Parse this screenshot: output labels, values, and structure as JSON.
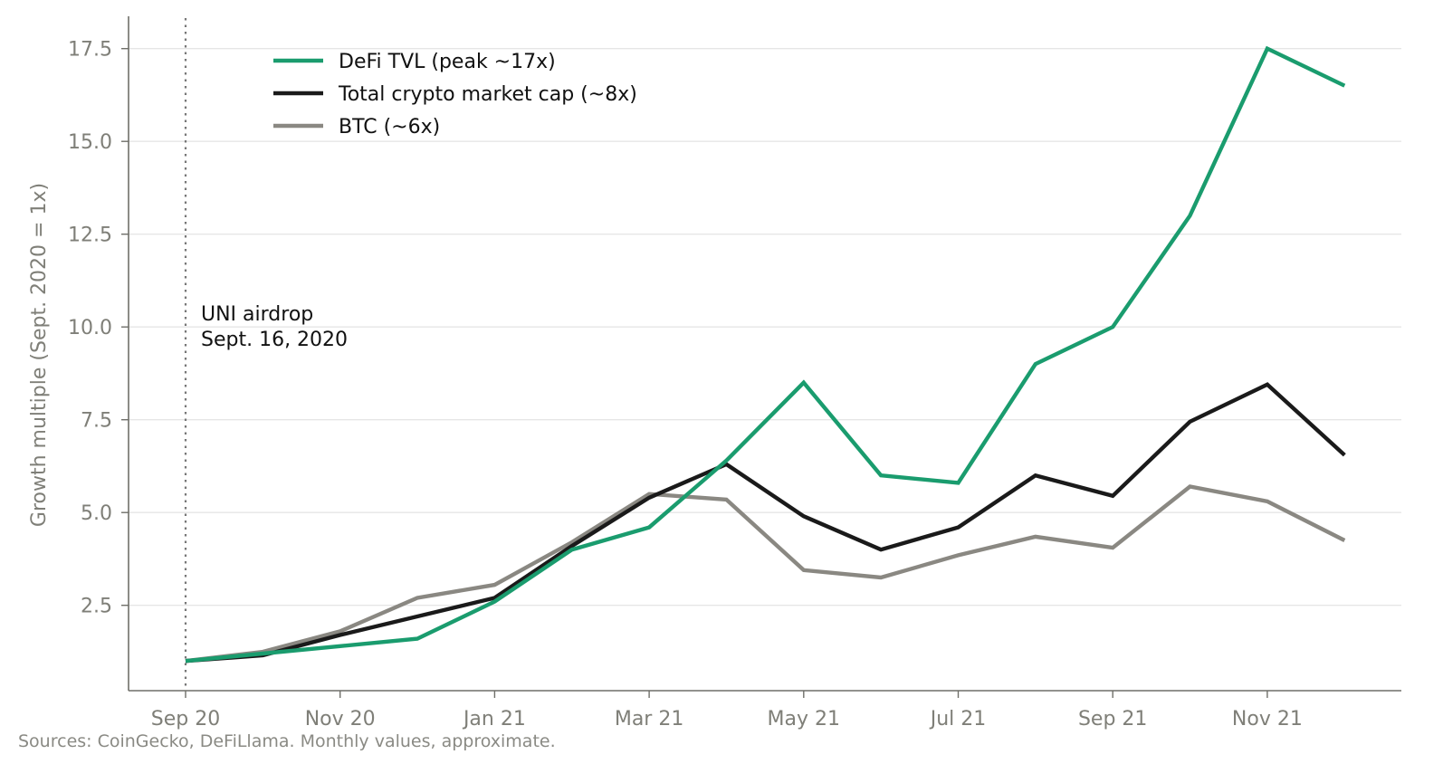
{
  "chart_data": {
    "type": "line",
    "title": "",
    "xlabel": "",
    "ylabel": "Growth multiple (Sept. 2020 = 1x)",
    "x": [
      "Sep 20",
      "Oct 20",
      "Nov 20",
      "Dec 20",
      "Jan 21",
      "Feb 21",
      "Mar 21",
      "Apr 21",
      "May 21",
      "Jun 21",
      "Jul 21",
      "Aug 21",
      "Sep 21",
      "Oct 21",
      "Nov 21",
      "Dec 21"
    ],
    "xticks": [
      "Sep 20",
      "Nov 20",
      "Jan 21",
      "Mar 21",
      "May 21",
      "Jul 21",
      "Sep 21",
      "Nov 21"
    ],
    "yticks": [
      "2.5",
      "5.0",
      "7.5",
      "10.0",
      "12.5",
      "15.0",
      "17.5"
    ],
    "ylim": [
      0.2,
      18.5
    ],
    "grid": "horizontal",
    "legend_position": "top-left",
    "series": [
      {
        "name": "DeFi TVL (peak ~17x)",
        "color": "#1a9c6e",
        "values": [
          1.0,
          1.2,
          1.4,
          1.6,
          2.6,
          4.0,
          4.6,
          6.4,
          8.5,
          6.0,
          5.8,
          9.0,
          10.0,
          13.0,
          17.5,
          16.5
        ]
      },
      {
        "name": "Total crypto market cap (~8x)",
        "color": "#1a1a1a",
        "values": [
          1.0,
          1.15,
          1.7,
          2.2,
          2.7,
          4.1,
          5.4,
          6.3,
          4.9,
          4.0,
          4.6,
          6.0,
          5.45,
          7.45,
          8.45,
          6.55
        ]
      },
      {
        "name": "BTC (~6x)",
        "color": "#8a8882",
        "values": [
          1.0,
          1.25,
          1.8,
          2.7,
          3.05,
          4.2,
          5.5,
          5.35,
          3.45,
          3.25,
          3.85,
          4.35,
          4.05,
          5.7,
          5.3,
          4.25
        ]
      }
    ],
    "annotations": [
      {
        "x": "Sep 20",
        "line_style": "dotted",
        "text_lines": [
          "UNI airdrop",
          "Sept. 16, 2020"
        ]
      }
    ]
  },
  "source_note": "Sources: CoinGecko, DeFiLlama. Monthly values, approximate."
}
